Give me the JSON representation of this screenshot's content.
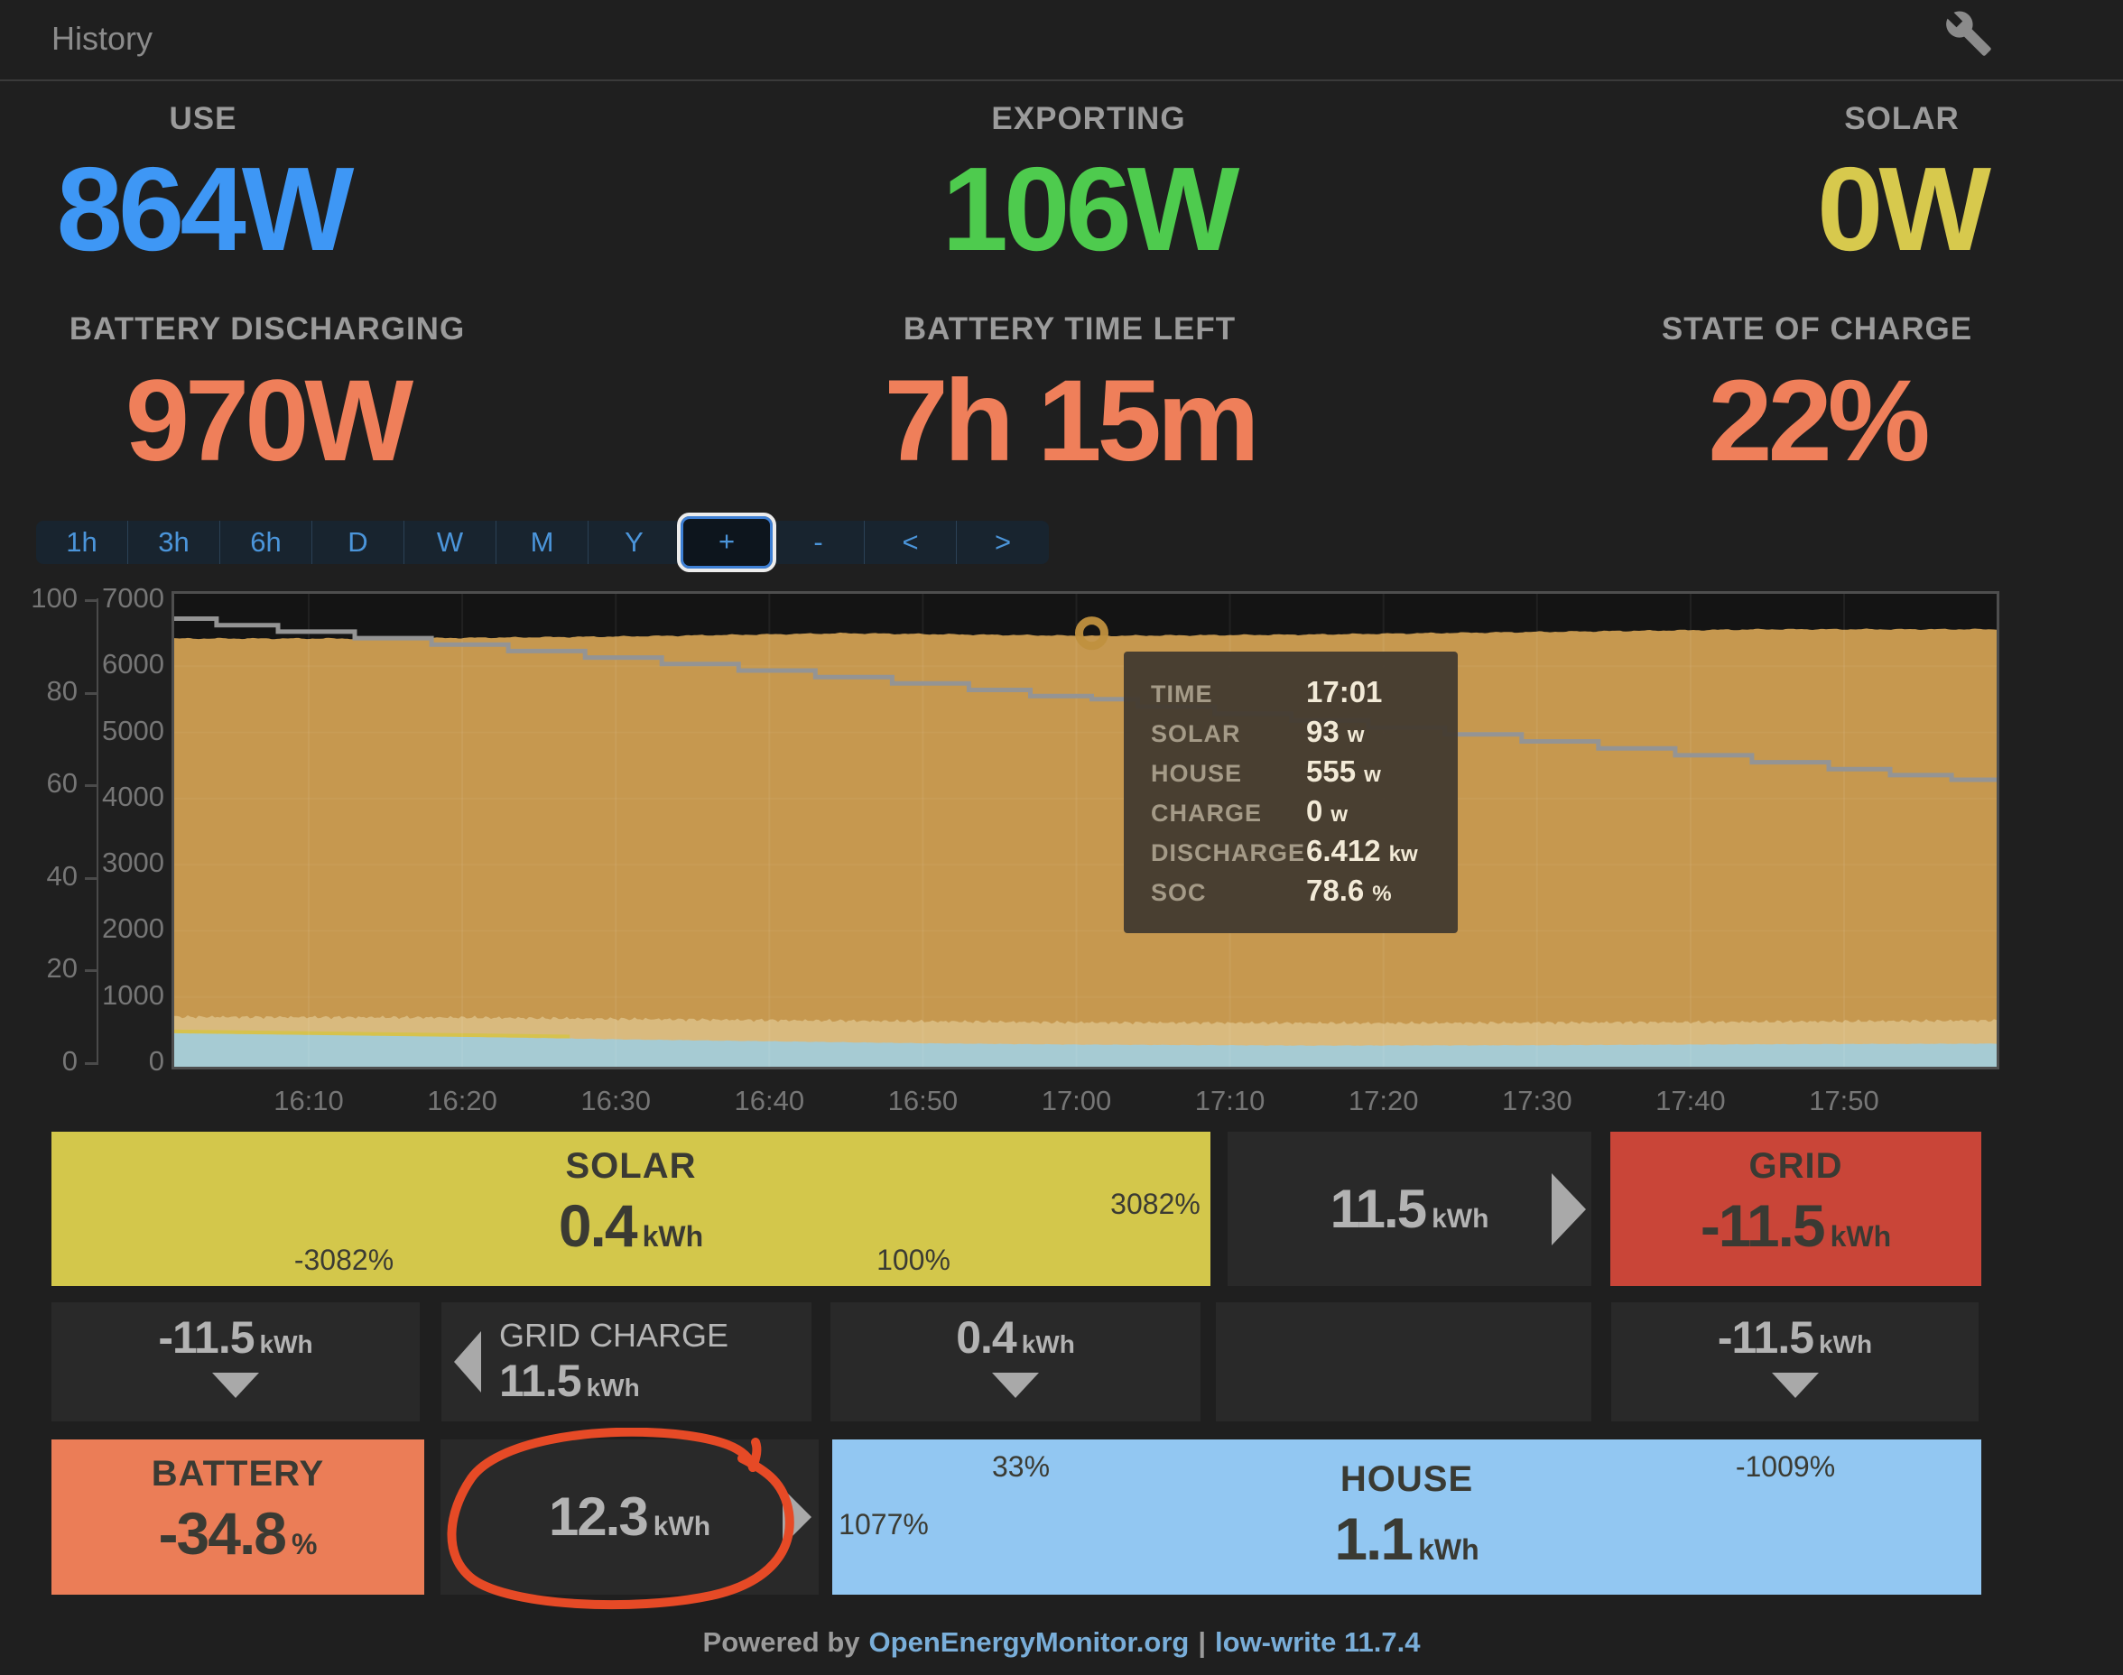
{
  "header": {
    "title": "History",
    "wrench_icon": "wrench"
  },
  "stats": {
    "row1": [
      {
        "label": "USE",
        "value": "864W",
        "color": "#3e97f5"
      },
      {
        "label": "EXPORTING",
        "value": "106W",
        "color": "#4ecb4e"
      },
      {
        "label": "SOLAR",
        "value": "0W",
        "color": "#d7c94d"
      }
    ],
    "row2": [
      {
        "label": "BATTERY DISCHARGING",
        "value": "970W"
      },
      {
        "label": "BATTERY TIME LEFT",
        "value": "7h 15m"
      },
      {
        "label": "STATE OF CHARGE",
        "value": "22%"
      }
    ],
    "row2_color": "#ef7f5a"
  },
  "toolbar": {
    "buttons": [
      "1h",
      "3h",
      "6h",
      "D",
      "W",
      "M",
      "Y",
      "+",
      "-",
      "<",
      ">"
    ],
    "focused": "+"
  },
  "chart_data": {
    "type": "area",
    "title": "",
    "x_axis": {
      "ticks": [
        "16:10",
        "16:20",
        "16:30",
        "16:40",
        "16:50",
        "17:00",
        "17:10",
        "17:20",
        "17:30",
        "17:40",
        "17:50"
      ],
      "tick_interval_min": 10,
      "range_min": [
        1,
        120
      ]
    },
    "y_axis_percent": {
      "range": [
        0,
        100
      ],
      "ticks": [
        0,
        20,
        40,
        60,
        80,
        100
      ]
    },
    "y_axis_watts": {
      "range": [
        0,
        7000
      ],
      "ticks": [
        0,
        1000,
        2000,
        3000,
        4000,
        5000,
        6000,
        7000
      ]
    },
    "grid": true,
    "legend": "none",
    "plot_bg": "#141414",
    "border_color": "#4e4e4e",
    "series": [
      {
        "name": "battery-discharge",
        "type": "area",
        "color": "#c6984f",
        "unit": "W",
        "points": [
          [
            1,
            6420
          ],
          [
            15,
            6420
          ],
          [
            30,
            6450
          ],
          [
            45,
            6500
          ],
          [
            61,
            6460
          ],
          [
            75,
            6480
          ],
          [
            90,
            6520
          ],
          [
            105,
            6560
          ],
          [
            120,
            6560
          ]
        ]
      },
      {
        "name": "discharge-light-band",
        "type": "area",
        "color": "#d9ba7e",
        "unit": "W",
        "points": [
          [
            1,
            700
          ],
          [
            20,
            690
          ],
          [
            40,
            650
          ],
          [
            60,
            615
          ],
          [
            80,
            605
          ],
          [
            100,
            620
          ],
          [
            120,
            645
          ]
        ]
      },
      {
        "name": "house",
        "type": "area",
        "color": "#a6cbd3",
        "unit": "W",
        "points": [
          [
            1,
            455
          ],
          [
            10,
            430
          ],
          [
            20,
            400
          ],
          [
            30,
            360
          ],
          [
            40,
            330
          ],
          [
            50,
            300
          ],
          [
            60,
            280
          ],
          [
            75,
            265
          ],
          [
            90,
            270
          ],
          [
            105,
            285
          ],
          [
            120,
            295
          ]
        ]
      },
      {
        "name": "solar",
        "type": "line",
        "color": "#d6c24d",
        "unit": "W",
        "points": [
          [
            1,
            480
          ],
          [
            10,
            455
          ],
          [
            20,
            425
          ],
          [
            27,
            402
          ]
        ]
      },
      {
        "name": "soc",
        "type": "step-line",
        "color": "#949494",
        "unit": "%",
        "points": [
          [
            1,
            96
          ],
          [
            4,
            94.6
          ],
          [
            8,
            93.2
          ],
          [
            13,
            91.8
          ],
          [
            18,
            90.4
          ],
          [
            23,
            89
          ],
          [
            28,
            87.6
          ],
          [
            33,
            86.2
          ],
          [
            38,
            84.8
          ],
          [
            43,
            83.4
          ],
          [
            48,
            82
          ],
          [
            53,
            80.6
          ],
          [
            57,
            79.3
          ],
          [
            61,
            78.6
          ],
          [
            64,
            77
          ],
          [
            69,
            75.5
          ],
          [
            74,
            74
          ],
          [
            79,
            72.5
          ],
          [
            84,
            71
          ],
          [
            89,
            69.5
          ],
          [
            94,
            68
          ],
          [
            99,
            66.5
          ],
          [
            104,
            65
          ],
          [
            109,
            63.5
          ],
          [
            113,
            62.2
          ],
          [
            117,
            61.2
          ],
          [
            120,
            61
          ]
        ]
      }
    ],
    "hover_marker": {
      "time_min": 61,
      "watts": 6500,
      "color": "#c0903e"
    }
  },
  "tooltip": {
    "rows": [
      {
        "label": "TIME",
        "value": "17:01",
        "unit": ""
      },
      {
        "label": "SOLAR",
        "value": "93",
        "unit": "w"
      },
      {
        "label": "HOUSE",
        "value": "555",
        "unit": "w"
      },
      {
        "label": "CHARGE",
        "value": "0",
        "unit": "w"
      },
      {
        "label": "DISCHARGE",
        "value": "6.412",
        "unit": "kw"
      },
      {
        "label": "SOC",
        "value": "78.6",
        "unit": "%"
      }
    ]
  },
  "flow": {
    "solar": {
      "title": "SOLAR",
      "value": "0.4",
      "unit": "kWh",
      "bg": "#d3c74b",
      "pct_bottom_left": "-3082%",
      "pct_bottom_right": "100%",
      "pct_right": "3082%"
    },
    "solar_to_grid": {
      "value": "11.5",
      "unit": "kWh"
    },
    "grid": {
      "title": "GRID",
      "value": "-11.5",
      "unit": "kWh",
      "bg": "#c94538"
    },
    "row2": {
      "solar_to_battery": {
        "value": "-11.5",
        "unit": "kWh"
      },
      "grid_charge": {
        "label": "GRID CHARGE",
        "value": "11.5",
        "unit": "kWh"
      },
      "solar_to_house": {
        "value": "0.4",
        "unit": "kWh"
      },
      "grid_to_house": {
        "value": "-11.5",
        "unit": "kWh"
      }
    },
    "battery": {
      "title": "BATTERY",
      "value": "-34.8",
      "unit": "%",
      "bg": "#eb7d57"
    },
    "battery_to_house": {
      "value": "12.3",
      "unit": "kWh",
      "annotation_color": "#e64a26"
    },
    "house": {
      "title": "HOUSE",
      "value": "1.1",
      "unit": "kWh",
      "bg": "#92c7f2",
      "pct_top_left": "33%",
      "pct_top_right": "-1009%",
      "pct_mid_left": "1077%"
    }
  },
  "footer": {
    "powered_by": "Powered by",
    "link": "OpenEnergyMonitor.org",
    "separator": "|",
    "version": "low-write 11.7.4"
  }
}
